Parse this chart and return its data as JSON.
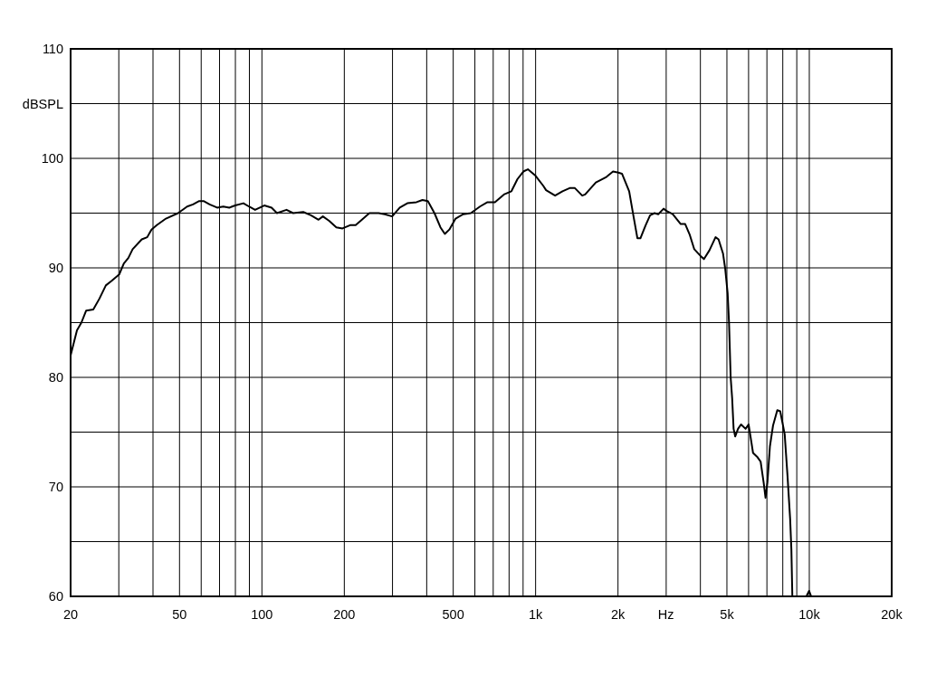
{
  "chart_data": {
    "type": "line",
    "xlabel": "Hz",
    "ylabel": "dBSPL",
    "log": "x",
    "grid": true,
    "xlim": [
      20,
      20000
    ],
    "ylim": [
      60,
      110
    ],
    "xticks": [
      20,
      {
        "value": 30,
        "label": null
      },
      {
        "value": 40,
        "label": null
      },
      50,
      {
        "value": 60,
        "label": null
      },
      {
        "value": 70,
        "label": null
      },
      {
        "value": 80,
        "label": null
      },
      {
        "value": 90,
        "label": null
      },
      100,
      200,
      {
        "value": 300,
        "label": null
      },
      {
        "value": 400,
        "label": null
      },
      500,
      {
        "value": 600,
        "label": null
      },
      {
        "value": 700,
        "label": null
      },
      {
        "value": 800,
        "label": null
      },
      {
        "value": 900,
        "label": null
      },
      {
        "value": 1000,
        "label": "1k"
      },
      {
        "value": 2000,
        "label": "2k"
      },
      {
        "value": 3000,
        "label": null
      },
      {
        "value": 4000,
        "label": null
      },
      {
        "value": 5000,
        "label": "5k"
      },
      {
        "value": 6000,
        "label": null
      },
      {
        "value": 7000,
        "label": null
      },
      {
        "value": 8000,
        "label": null
      },
      {
        "value": 9000,
        "label": null
      },
      {
        "value": 10000,
        "label": "10k"
      },
      {
        "value": 20000,
        "label": "20k"
      }
    ],
    "yticks": [
      60,
      {
        "value": 65,
        "label": null
      },
      70,
      {
        "value": 75,
        "label": null
      },
      80,
      {
        "value": 85,
        "label": null
      },
      90,
      {
        "value": 95,
        "label": null
      },
      100,
      {
        "value": 105,
        "label": null
      },
      110
    ],
    "series": [
      {
        "color": "#000000",
        "x": [
          20,
          21.1,
          21.9,
          22.8,
          24.2,
          25.5,
          26.9,
          28.2,
          30.1,
          31.3,
          32.5,
          33.7,
          36.4,
          38.1,
          39.5,
          41.3,
          44.6,
          49.4,
          53.3,
          56,
          59,
          61.2,
          64.4,
          68.6,
          72.2,
          76,
          79.9,
          85.6,
          89.7,
          94.4,
          102,
          108.5,
          113.5,
          123,
          130,
          141.6,
          151,
          161,
          167,
          176,
          187,
          197,
          210,
          220,
          232,
          247,
          267,
          281,
          299,
          319,
          340,
          367,
          386,
          404,
          427,
          449,
          466,
          484,
          510,
          544,
          580,
          626,
          667,
          710,
          766,
          816,
          858,
          902,
          937,
          1000,
          1066,
          1092,
          1178,
          1254,
          1337,
          1389,
          1480,
          1517,
          1660,
          1814,
          1918,
          2006,
          2068,
          2197,
          2283,
          2355,
          2415,
          2524,
          2620,
          2720,
          2806,
          2935,
          3010,
          3170,
          3390,
          3520,
          3660,
          3800,
          4000,
          4122,
          4316,
          4544,
          4660,
          4840,
          4930,
          5030,
          5090,
          5160,
          5225,
          5290,
          5360,
          5490,
          5630,
          5850,
          6000,
          6080,
          6230,
          6470,
          6640,
          6810,
          6920,
          7030,
          7180,
          7370,
          7640,
          7830,
          8130,
          8330,
          8510,
          8600,
          8670,
          9200,
          9760,
          9980,
          10160
        ],
        "values": [
          82.0,
          84.3,
          85.0,
          86.1,
          86.2,
          87.2,
          88.4,
          88.8,
          89.4,
          90.4,
          90.9,
          91.7,
          92.6,
          92.8,
          93.5,
          93.9,
          94.5,
          95.0,
          95.6,
          95.8,
          96.1,
          96.1,
          95.8,
          95.5,
          95.6,
          95.5,
          95.7,
          95.9,
          95.6,
          95.3,
          95.7,
          95.5,
          95.0,
          95.3,
          95.0,
          95.1,
          94.8,
          94.4,
          94.7,
          94.3,
          93.7,
          93.6,
          93.9,
          93.9,
          94.4,
          95.0,
          95.0,
          94.9,
          94.7,
          95.5,
          95.9,
          96.0,
          96.2,
          96.1,
          95.0,
          93.7,
          93.1,
          93.5,
          94.5,
          94.9,
          95.0,
          95.6,
          96.0,
          96.0,
          96.7,
          97.0,
          98.1,
          98.8,
          99.0,
          98.4,
          97.5,
          97.1,
          96.6,
          97.0,
          97.3,
          97.3,
          96.6,
          96.7,
          97.8,
          98.3,
          98.8,
          98.7,
          98.6,
          97.0,
          94.6,
          92.7,
          92.7,
          93.9,
          94.8,
          95.0,
          94.9,
          95.4,
          95.2,
          94.9,
          94.0,
          94.0,
          93.0,
          91.7,
          91.1,
          90.8,
          91.6,
          92.8,
          92.6,
          91.3,
          89.9,
          87.7,
          85.0,
          80.0,
          78.1,
          75.3,
          74.6,
          75.3,
          75.7,
          75.3,
          75.7,
          74.8,
          73.1,
          72.7,
          72.3,
          70.4,
          69.0,
          70.4,
          73.7,
          75.6,
          77.0,
          76.9,
          74.8,
          70.9,
          67.1,
          64.3,
          60.0,
          null,
          60.0,
          60.5,
          60.0
        ]
      }
    ]
  }
}
